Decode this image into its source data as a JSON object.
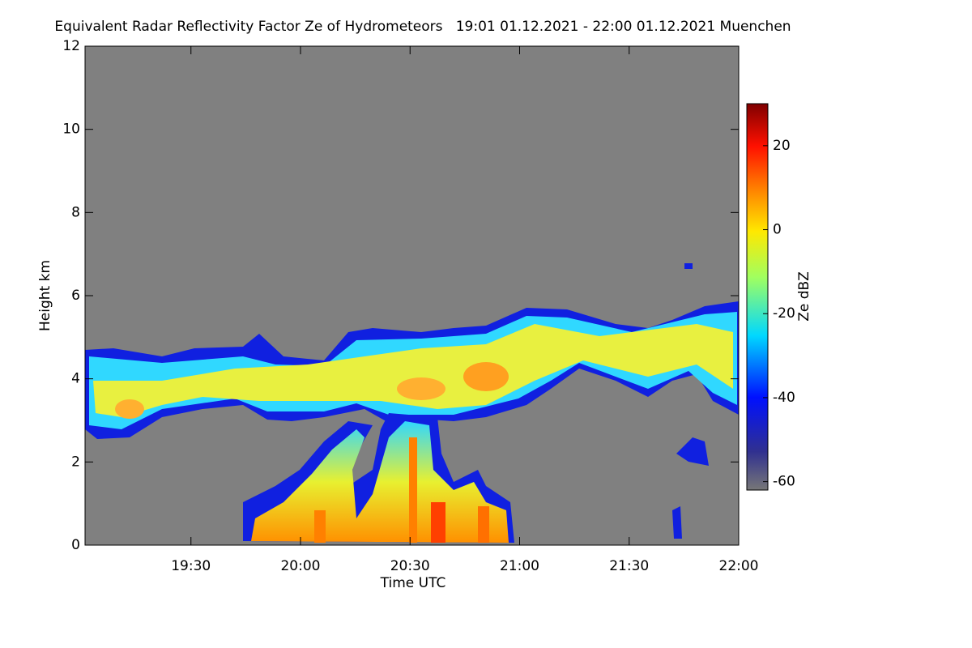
{
  "chart_data": {
    "type": "heatmap",
    "title": "Equivalent Radar Reflectivity Factor Ze of Hydrometeors   19:01 01.12.2021 - 22:00 01.12.2021 Muenchen",
    "x_label": "Time UTC",
    "y_label": "Height km",
    "colorbar_label": "Ze dBZ",
    "xlim": [
      1141,
      1320
    ],
    "xticks": [
      {
        "value": 1170,
        "label": "19:30"
      },
      {
        "value": 1200,
        "label": "20:00"
      },
      {
        "value": 1230,
        "label": "20:30"
      },
      {
        "value": 1260,
        "label": "21:00"
      },
      {
        "value": 1290,
        "label": "21:30"
      },
      {
        "value": 1320,
        "label": "22:00"
      }
    ],
    "ylim": [
      0,
      12
    ],
    "yticks": [
      0,
      2,
      4,
      6,
      8,
      10,
      12
    ],
    "clim": [
      -62,
      30
    ],
    "cticks": [
      -60,
      -40,
      -20,
      0,
      20
    ]
  }
}
